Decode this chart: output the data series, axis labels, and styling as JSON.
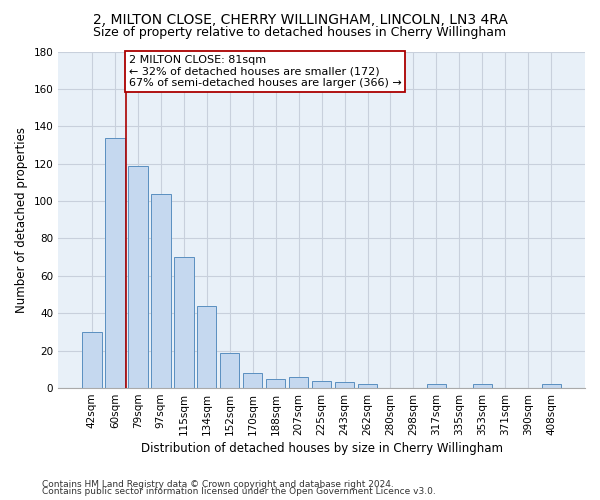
{
  "title": "2, MILTON CLOSE, CHERRY WILLINGHAM, LINCOLN, LN3 4RA",
  "subtitle": "Size of property relative to detached houses in Cherry Willingham",
  "xlabel": "Distribution of detached houses by size in Cherry Willingham",
  "ylabel": "Number of detached properties",
  "footnote1": "Contains HM Land Registry data © Crown copyright and database right 2024.",
  "footnote2": "Contains public sector information licensed under the Open Government Licence v3.0.",
  "categories": [
    "42sqm",
    "60sqm",
    "79sqm",
    "97sqm",
    "115sqm",
    "134sqm",
    "152sqm",
    "170sqm",
    "188sqm",
    "207sqm",
    "225sqm",
    "243sqm",
    "262sqm",
    "280sqm",
    "298sqm",
    "317sqm",
    "335sqm",
    "353sqm",
    "371sqm",
    "390sqm",
    "408sqm"
  ],
  "values": [
    30,
    134,
    119,
    104,
    70,
    44,
    19,
    8,
    5,
    6,
    4,
    3,
    2,
    0,
    0,
    2,
    0,
    2,
    0,
    0,
    2
  ],
  "bar_color": "#c5d8ef",
  "bar_edge_color": "#5a8fc0",
  "annotation_line1": "2 MILTON CLOSE: 81sqm",
  "annotation_line2": "← 32% of detached houses are smaller (172)",
  "annotation_line3": "67% of semi-detached houses are larger (366) →",
  "vline_x_index": 1.5,
  "vline_color": "#aa0000",
  "annotation_box_edge_color": "#aa0000",
  "ylim": [
    0,
    180
  ],
  "yticks": [
    0,
    20,
    40,
    60,
    80,
    100,
    120,
    140,
    160,
    180
  ],
  "background_color": "#e8f0f8",
  "grid_color": "#c8d0dc",
  "title_fontsize": 10,
  "subtitle_fontsize": 9,
  "ylabel_fontsize": 8.5,
  "xlabel_fontsize": 8.5,
  "tick_fontsize": 7.5,
  "annotation_fontsize": 8,
  "footnote_fontsize": 6.5
}
